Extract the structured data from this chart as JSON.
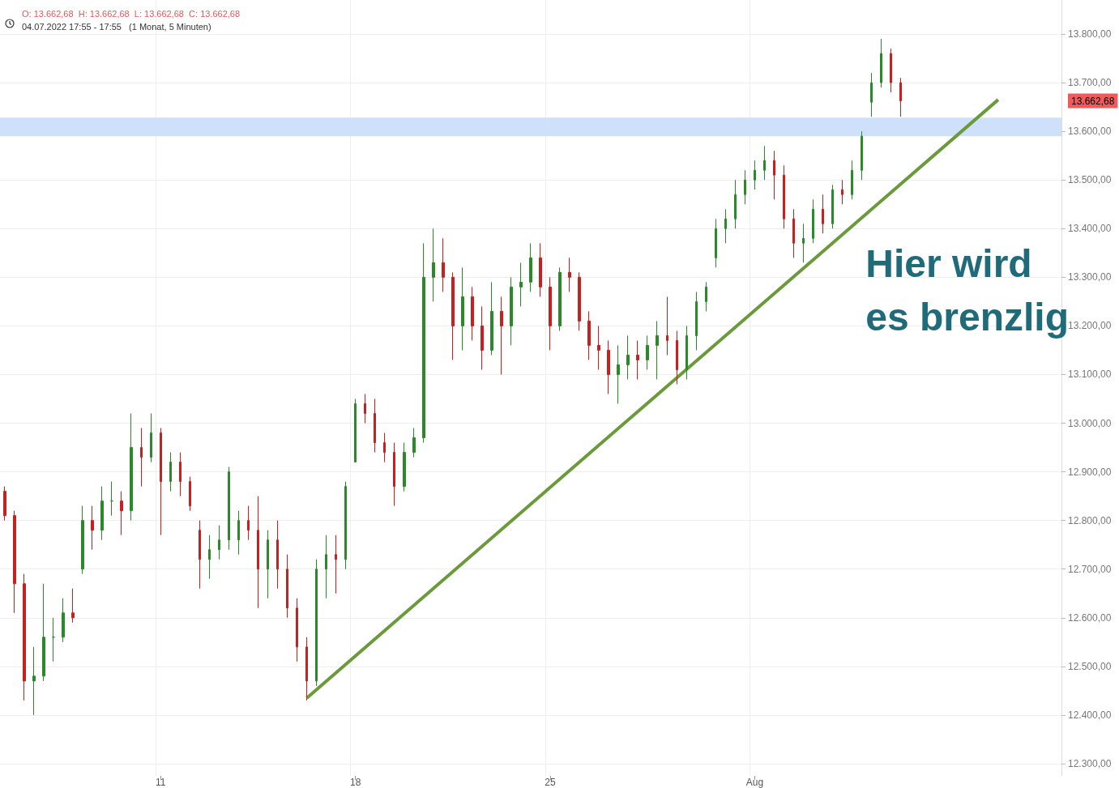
{
  "chart_data": {
    "type": "candlestick",
    "title": "O: 13.662,68  H: 13.662,68  L: 13.662,68  C: 13.662,68",
    "subtitle": "04.07.2022 17:55 - 17:55   (1 Monat, 5 Minuten)",
    "annotations": [
      "Hier wird es brenzlig",
      "13.662,68"
    ],
    "categories": [
      null,
      null,
      null,
      null,
      null,
      null,
      null,
      null,
      null,
      null,
      null,
      null,
      null,
      null,
      null,
      null,
      "11",
      null,
      null,
      null,
      null,
      null,
      null,
      null,
      null,
      null,
      null,
      null,
      null,
      null,
      null,
      null,
      null,
      null,
      null,
      null,
      "18",
      null,
      null,
      null,
      null,
      null,
      null,
      null,
      null,
      null,
      null,
      null,
      null,
      null,
      null,
      null,
      null,
      null,
      null,
      null,
      "25",
      null,
      null,
      null,
      null,
      null,
      null,
      null,
      null,
      null,
      null,
      null,
      null,
      null,
      null,
      null,
      null,
      null,
      null,
      null,
      null,
      "Aug",
      null,
      null,
      null,
      null,
      null,
      null,
      null,
      null,
      null,
      null,
      null,
      null,
      null,
      null,
      null,
      null,
      null,
      null,
      null,
      null,
      null,
      null,
      null,
      null,
      null,
      null,
      null,
      null,
      null,
      null,
      null
    ],
    "ohlc": [
      [
        12860,
        12870,
        12800,
        12810
      ],
      [
        12810,
        12820,
        12610,
        12670
      ],
      [
        12670,
        12690,
        12430,
        12470
      ],
      [
        12470,
        12540,
        12400,
        12480
      ],
      [
        12480,
        12670,
        12470,
        12560
      ],
      [
        12560,
        12600,
        12510,
        12560
      ],
      [
        12560,
        12640,
        12550,
        12610
      ],
      [
        12610,
        12660,
        12590,
        12600
      ],
      [
        12700,
        12830,
        12690,
        12800
      ],
      [
        12800,
        12830,
        12740,
        12780
      ],
      [
        12780,
        12870,
        12760,
        12840
      ],
      [
        12840,
        12880,
        12810,
        12840
      ],
      [
        12840,
        12860,
        12770,
        12820
      ],
      [
        12820,
        13020,
        12800,
        12950
      ],
      [
        12950,
        12990,
        12870,
        12930
      ],
      [
        12930,
        13020,
        12920,
        12980
      ],
      [
        12980,
        12990,
        12770,
        12880
      ],
      [
        12880,
        12940,
        12860,
        12920
      ],
      [
        12920,
        12940,
        12850,
        12880
      ],
      [
        12880,
        12890,
        12820,
        12830
      ],
      [
        12780,
        12800,
        12660,
        12720
      ],
      [
        12720,
        12770,
        12680,
        12740
      ],
      [
        12740,
        12790,
        12720,
        12760
      ],
      [
        12760,
        12910,
        12740,
        12900
      ],
      [
        12760,
        12820,
        12730,
        12800
      ],
      [
        12800,
        12830,
        12760,
        12780
      ],
      [
        12780,
        12850,
        12620,
        12700
      ],
      [
        12700,
        12780,
        12640,
        12760
      ],
      [
        12760,
        12800,
        12660,
        12700
      ],
      [
        12700,
        12730,
        12600,
        12620
      ],
      [
        12620,
        12640,
        12510,
        12540
      ],
      [
        12540,
        12560,
        12430,
        12470
      ],
      [
        12470,
        12720,
        12460,
        12700
      ],
      [
        12700,
        12770,
        12640,
        12730
      ],
      [
        12730,
        12770,
        12650,
        12720
      ],
      [
        12720,
        12880,
        12700,
        12870
      ],
      [
        12920,
        13050,
        12920,
        13040
      ],
      [
        13040,
        13060,
        13000,
        13020
      ],
      [
        13020,
        13050,
        12940,
        12960
      ],
      [
        12960,
        12980,
        12920,
        12940
      ],
      [
        12940,
        12960,
        12830,
        12870
      ],
      [
        12870,
        12960,
        12860,
        12940
      ],
      [
        12940,
        12990,
        12930,
        12970
      ],
      [
        12970,
        13370,
        12960,
        13300
      ],
      [
        13300,
        13400,
        13250,
        13330
      ],
      [
        13330,
        13380,
        13270,
        13300
      ],
      [
        13300,
        13310,
        13130,
        13200
      ],
      [
        13200,
        13320,
        13150,
        13260
      ],
      [
        13260,
        13280,
        13170,
        13200
      ],
      [
        13200,
        13240,
        13110,
        13150
      ],
      [
        13150,
        13290,
        13140,
        13230
      ],
      [
        13230,
        13260,
        13100,
        13200
      ],
      [
        13200,
        13300,
        13160,
        13280
      ],
      [
        13280,
        13330,
        13240,
        13290
      ],
      [
        13290,
        13370,
        13270,
        13340
      ],
      [
        13340,
        13370,
        13260,
        13280
      ],
      [
        13280,
        13300,
        13150,
        13200
      ],
      [
        13200,
        13320,
        13190,
        13310
      ],
      [
        13310,
        13340,
        13270,
        13300
      ],
      [
        13300,
        13310,
        13190,
        13210
      ],
      [
        13210,
        13230,
        13130,
        13160
      ],
      [
        13160,
        13200,
        13110,
        13150
      ],
      [
        13150,
        13170,
        13060,
        13100
      ],
      [
        13100,
        13160,
        13040,
        13120
      ],
      [
        13120,
        13180,
        13090,
        13140
      ],
      [
        13140,
        13170,
        13090,
        13130
      ],
      [
        13130,
        13180,
        13110,
        13160
      ],
      [
        13160,
        13210,
        13090,
        13180
      ],
      [
        13180,
        13260,
        13140,
        13170
      ],
      [
        13170,
        13190,
        13080,
        13110
      ],
      [
        13110,
        13200,
        13090,
        13180
      ],
      [
        13180,
        13270,
        13150,
        13250
      ],
      [
        13250,
        13290,
        13230,
        13280
      ],
      [
        13340,
        13420,
        13320,
        13400
      ],
      [
        13400,
        13440,
        13370,
        13420
      ],
      [
        13420,
        13500,
        13400,
        13470
      ],
      [
        13470,
        13520,
        13450,
        13500
      ],
      [
        13500,
        13540,
        13480,
        13520
      ],
      [
        13520,
        13570,
        13500,
        13540
      ],
      [
        13540,
        13560,
        13460,
        13510
      ],
      [
        13510,
        13530,
        13400,
        13420
      ],
      [
        13420,
        13440,
        13340,
        13370
      ],
      [
        13370,
        13410,
        13330,
        13380
      ],
      [
        13380,
        13460,
        13370,
        13440
      ],
      [
        13440,
        13470,
        13390,
        13410
      ],
      [
        13410,
        13490,
        13400,
        13480
      ],
      [
        13480,
        13500,
        13450,
        13470
      ],
      [
        13470,
        13540,
        13460,
        13520
      ],
      [
        13520,
        13600,
        13500,
        13590
      ],
      [
        13660,
        13720,
        13630,
        13700
      ],
      [
        13700,
        13790,
        13690,
        13760
      ],
      [
        13760,
        13770,
        13680,
        13700
      ],
      [
        13700,
        13710,
        13630,
        13662.68
      ],
      null,
      null,
      null,
      null,
      null,
      null,
      null,
      null,
      null,
      null,
      null,
      null,
      null,
      null,
      null,
      null
    ],
    "series": [
      {
        "type": "line",
        "color": "#6a9a3a",
        "values": [
          null,
          null,
          null,
          null,
          null,
          null,
          null,
          null,
          null,
          null,
          null,
          null,
          null,
          null,
          null,
          null,
          null,
          null,
          null,
          null,
          null,
          null,
          null,
          null,
          null,
          null,
          null,
          null,
          null,
          null,
          null,
          12435,
          null,
          null,
          null,
          null,
          null,
          null,
          null,
          null,
          null,
          null,
          null,
          null,
          null,
          null,
          null,
          null,
          null,
          null,
          null,
          null,
          null,
          null,
          null,
          null,
          null,
          null,
          null,
          null,
          null,
          null,
          null,
          null,
          null,
          null,
          null,
          null,
          null,
          null,
          null,
          null,
          null,
          null,
          null,
          null,
          null,
          null,
          null,
          null,
          null,
          null,
          null,
          null,
          null,
          null,
          null,
          null,
          null,
          null,
          null,
          null,
          null,
          null,
          null,
          null,
          null,
          null,
          null,
          null,
          null,
          null,
          13665,
          null,
          null,
          null,
          null,
          null,
          null
        ]
      }
    ],
    "ylim": [
      12275,
      13870
    ],
    "yticks": [
      {
        "value": 12300,
        "label": "12.300,00"
      },
      {
        "value": 12400,
        "label": "12.400,00"
      },
      {
        "value": 12500,
        "label": "12.500,00"
      },
      {
        "value": 12600,
        "label": "12.600,00"
      },
      {
        "value": 12700,
        "label": "12.700,00"
      },
      {
        "value": 12800,
        "label": "12.800,00"
      },
      {
        "value": 12900,
        "label": "12.900,00"
      },
      {
        "value": 13000,
        "label": "13.000,00"
      },
      {
        "value": 13100,
        "label": "13.100,00"
      },
      {
        "value": 13200,
        "label": "13.200,00"
      },
      {
        "value": 13300,
        "label": "13.300,00"
      },
      {
        "value": 13400,
        "label": "13.400,00"
      },
      {
        "value": 13500,
        "label": "13.500,00"
      },
      {
        "value": 13600,
        "label": "13.600,00"
      },
      {
        "value": 13700,
        "label": "13.700,00"
      },
      {
        "value": 13800,
        "label": "13.800,00"
      }
    ],
    "bands": [
      {
        "axis": "y",
        "from": 13590,
        "to": 13628,
        "color": "#cfe0fb"
      }
    ],
    "grid": true
  }
}
